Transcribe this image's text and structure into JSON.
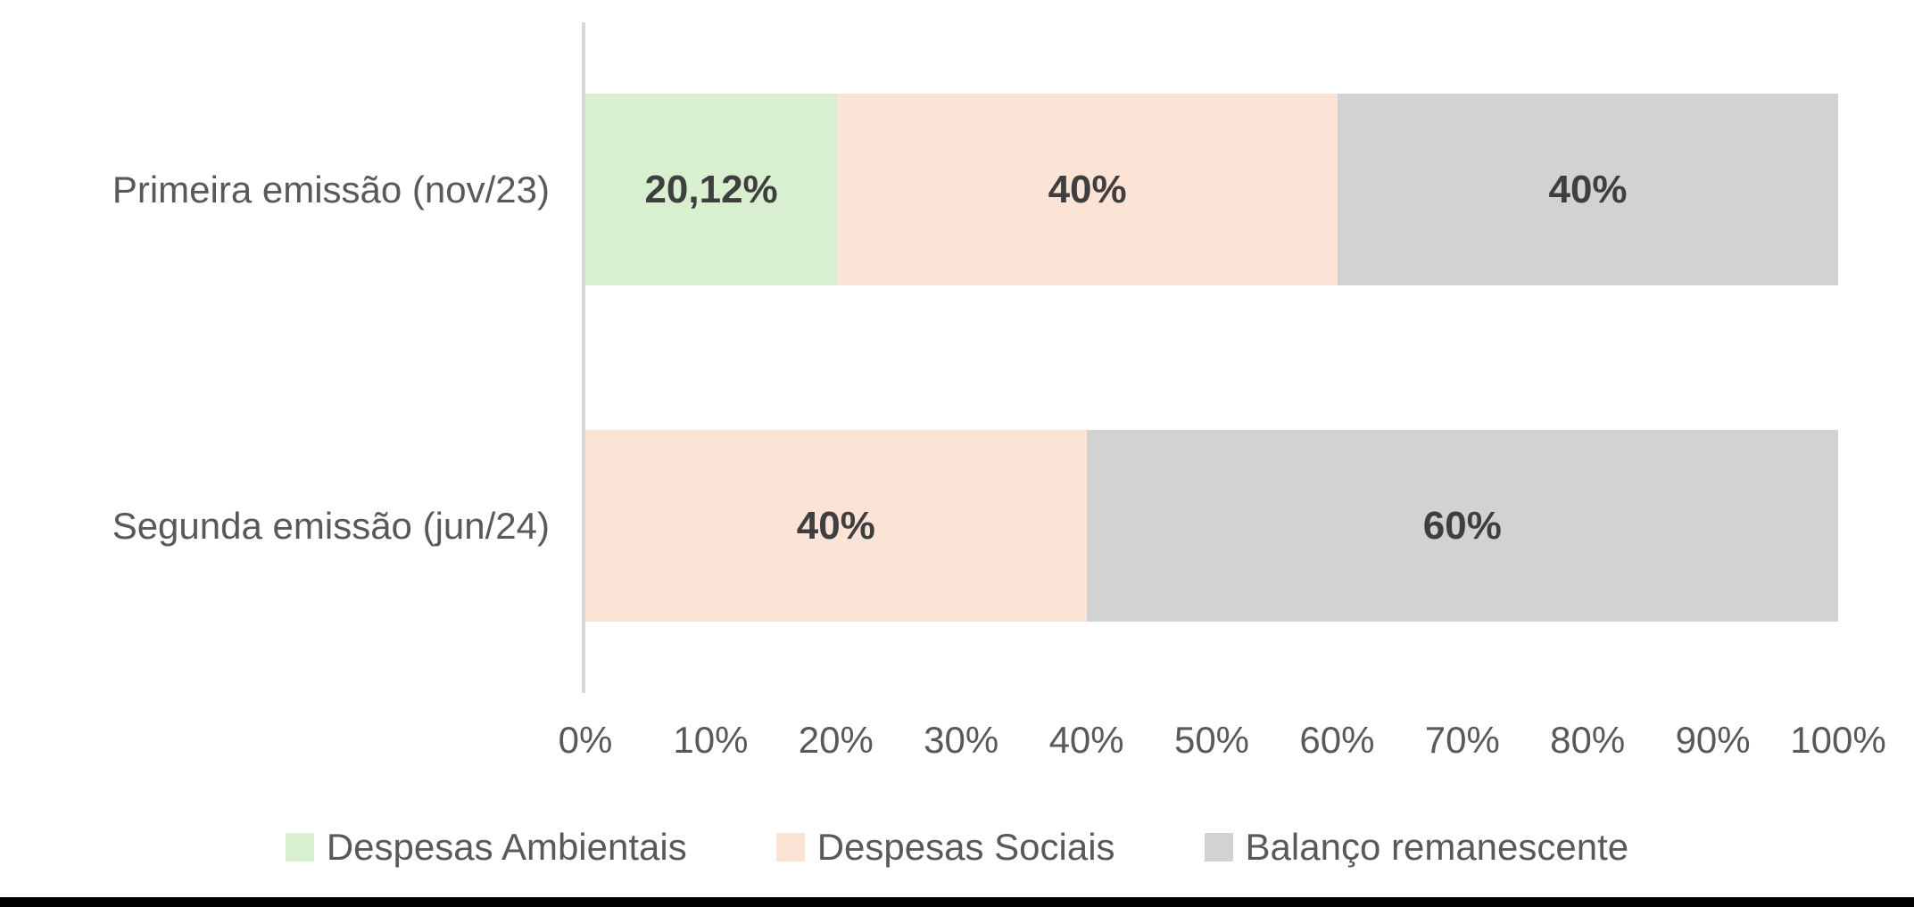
{
  "chart_data": {
    "type": "bar",
    "orientation": "horizontal",
    "stacked": true,
    "title": "",
    "xlabel": "",
    "ylabel": "",
    "categories": [
      "Primeira emissão (nov/23)",
      "Segunda emissão (jun/24)"
    ],
    "series": [
      {
        "name": "Despesas Ambientais",
        "color": "#d9f0d0",
        "values": [
          20.12,
          0
        ]
      },
      {
        "name": "Despesas Sociais",
        "color": "#fbe3d5",
        "values": [
          40,
          40
        ]
      },
      {
        "name": "Balanço remanescente",
        "color": "#d2d2d2",
        "values": [
          40,
          60
        ]
      }
    ],
    "data_labels": [
      [
        "20,12%",
        "40%",
        "40%"
      ],
      [
        "",
        "40%",
        "60%"
      ]
    ],
    "x_ticks": [
      "0%",
      "10%",
      "20%",
      "30%",
      "40%",
      "50%",
      "60%",
      "70%",
      "80%",
      "90%",
      "100%"
    ],
    "xlim": [
      0,
      100
    ],
    "grid": false,
    "legend_position": "bottom",
    "axis_line_color": "#d9d9d9",
    "data_label_color": "#3f3f3f",
    "text_color": "#595959",
    "footer_bar_color": "#000000"
  }
}
